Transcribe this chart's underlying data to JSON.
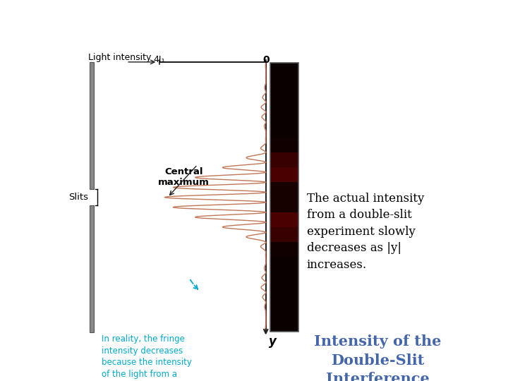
{
  "title": "Intensity of the\nDouble-Slit\nInterference\nPattern",
  "title_color": "#4466aa",
  "title_fontsize": 15,
  "body_text": "The actual intensity\nfrom a double-slit\nexperiment slowly\ndecreases as |y|\nincreases.",
  "body_fontsize": 12,
  "annotation_text": "In reality, the fringe\nintensity decreases\nbecause the intensity\nof the light from a\nsingle slit is not\nuniform.",
  "annotation_color": "#00aacc",
  "central_max_label": "Central\nmaximum",
  "slits_label": "Slits",
  "light_intensity_label": "Light intensity",
  "x_tick_label_0": "4I₁",
  "x_tick_label_1": "0",
  "y_axis_label": "y",
  "bg_color": "#ffffff",
  "curve_color": "#c07858",
  "fringe_bright_color": "#cc0000",
  "fringe_dark_color": "#220000",
  "n_fringes": 18
}
